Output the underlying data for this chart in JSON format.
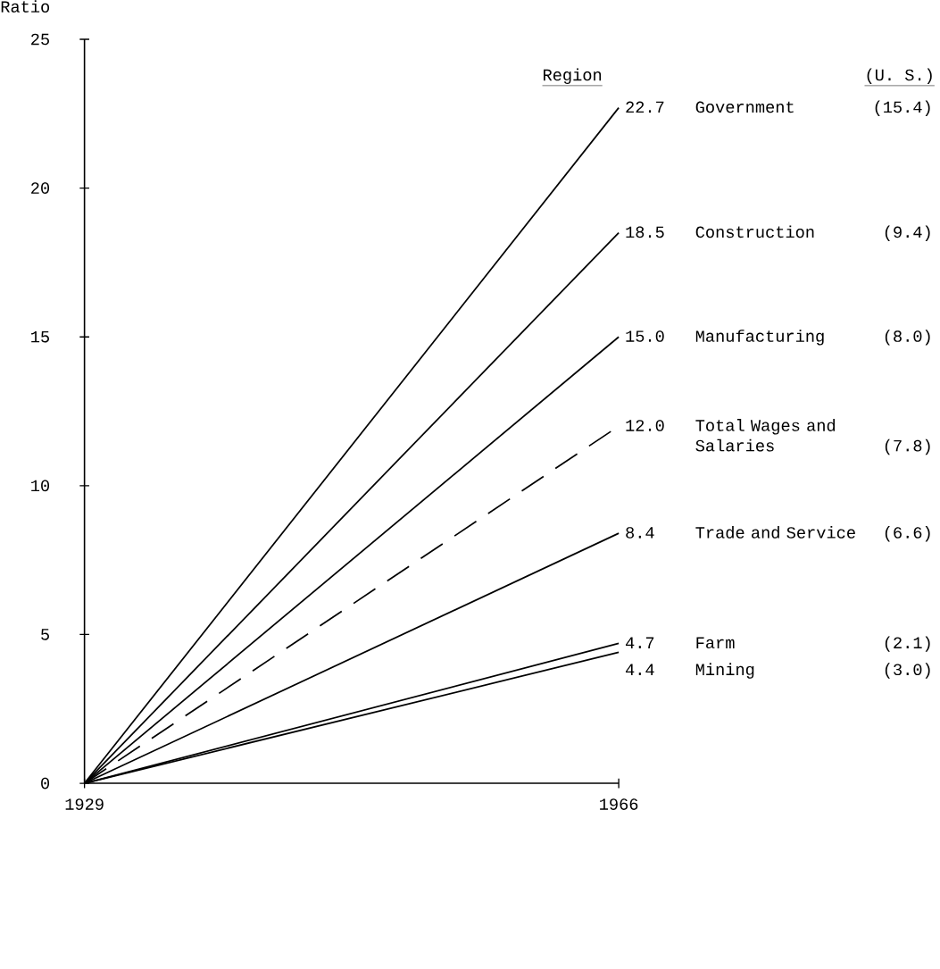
{
  "chart_data": {
    "type": "line",
    "ylabel": "Ratio",
    "x": [
      1929,
      1966
    ],
    "xlim": [
      1929,
      1966
    ],
    "ylim": [
      0,
      25
    ],
    "xticks": [
      1929,
      1966
    ],
    "yticks": [
      0,
      5,
      10,
      15,
      20,
      25
    ],
    "grid": false,
    "legend": false,
    "series": [
      {
        "name": "Government",
        "color": "#000000",
        "values": [
          0,
          22.7
        ],
        "value_labels": [
          null,
          "22.7"
        ],
        "line_style": "solid"
      },
      {
        "name": "Construction",
        "color": "#000000",
        "values": [
          0,
          18.5
        ],
        "value_labels": [
          null,
          "18.5"
        ],
        "line_style": "solid"
      },
      {
        "name": "Manufacturing",
        "color": "#000000",
        "values": [
          0,
          15.0
        ],
        "value_labels": [
          null,
          "15.0"
        ],
        "line_style": "solid"
      },
      {
        "name": "Total Wages and Salaries",
        "color": "#000000",
        "values": [
          0,
          12.0
        ],
        "value_labels": [
          null,
          "12.0"
        ],
        "line_style": "dashed"
      },
      {
        "name": "Trade and Service",
        "color": "#000000",
        "values": [
          0,
          8.4
        ],
        "value_labels": [
          null,
          "8.4"
        ],
        "line_style": "solid"
      },
      {
        "name": "Farm",
        "color": "#000000",
        "values": [
          0,
          4.7
        ],
        "value_labels": [
          null,
          "4.7"
        ],
        "line_style": "solid"
      },
      {
        "name": "Mining",
        "color": "#000000",
        "values": [
          0,
          4.4
        ],
        "value_labels": [
          null,
          "4.4"
        ],
        "line_style": "solid"
      }
    ],
    "annotations": [
      "Region",
      "(U. S.)",
      "(15.4)",
      "(9.4)",
      "(8.0)",
      "(7.8)",
      "(6.6)",
      "(2.1)",
      "(3.0)"
    ]
  }
}
